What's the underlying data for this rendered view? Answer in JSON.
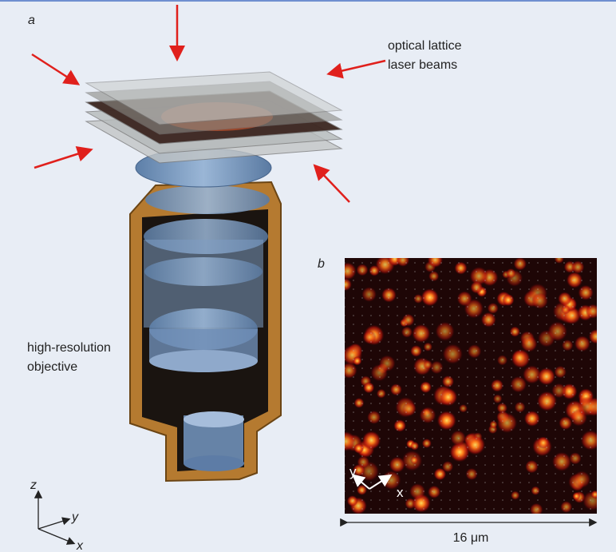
{
  "panel_a": {
    "label": "a",
    "beam_label_line1": "optical lattice",
    "beam_label_line2": "laser beams",
    "objective_label_line1": "high-resolution",
    "objective_label_line2": "objective",
    "axes": {
      "z": "z",
      "y": "y",
      "x": "x"
    }
  },
  "panel_b": {
    "label": "b",
    "axes": {
      "y": "y",
      "x": "x"
    },
    "scale_label": "16 μm"
  }
}
